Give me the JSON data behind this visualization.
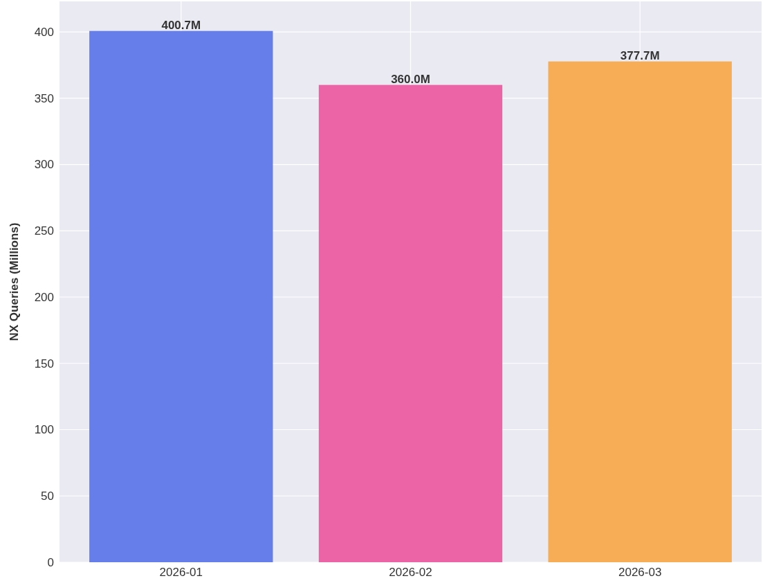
{
  "chart_data": {
    "type": "bar",
    "ylabel": "NX Queries (Millions)",
    "categories": [
      "2026-01",
      "2026-02",
      "2026-03"
    ],
    "values": [
      400.7,
      360.0,
      377.7
    ],
    "colors": [
      "#667eea",
      "#ed64a6",
      "#f6ad55"
    ],
    "value_labels": [
      "400.7M",
      "360.0M",
      "377.7M"
    ],
    "ylim": [
      0,
      423
    ],
    "yticks": [
      0,
      50,
      100,
      150,
      200,
      250,
      300,
      350,
      400
    ],
    "grid": true
  }
}
